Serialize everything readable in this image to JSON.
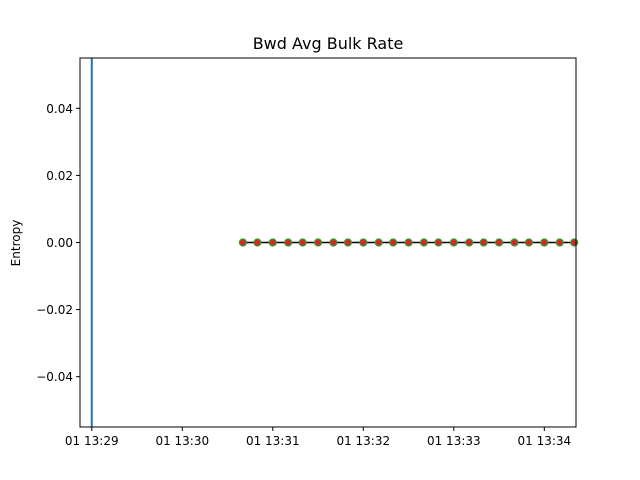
{
  "chart_data": {
    "type": "line",
    "title": "Bwd Avg Bulk Rate",
    "xlabel": "",
    "ylabel": "Entropy",
    "x_ticks": [
      "01 13:29",
      "01 13:30",
      "01 13:31",
      "01 13:32",
      "01 13:33",
      "01 13:34"
    ],
    "x_tick_minutes": [
      0,
      1,
      2,
      3,
      4,
      5
    ],
    "xlim_minutes": [
      -0.13,
      5.35
    ],
    "y_ticks": [
      "0.04",
      "0.02",
      "0.00",
      "−0.02",
      "−0.04"
    ],
    "y_tick_values": [
      0.04,
      0.02,
      0.0,
      -0.02,
      -0.04
    ],
    "ylim": [
      -0.055,
      0.055
    ],
    "vertical_line": {
      "x_minute": 0,
      "color": "#1f77b4"
    },
    "series": [
      {
        "x_minutes": [
          1.67,
          1.83,
          2.0,
          2.17,
          2.33,
          2.5,
          2.67,
          2.83,
          3.0,
          3.17,
          3.33,
          3.5,
          3.67,
          3.83,
          4.0,
          4.17,
          4.33,
          4.5,
          4.67,
          4.83,
          5.0,
          5.17,
          5.33
        ],
        "values": [
          0,
          0,
          0,
          0,
          0,
          0,
          0,
          0,
          0,
          0,
          0,
          0,
          0,
          0,
          0,
          0,
          0,
          0,
          0,
          0,
          0,
          0,
          0
        ],
        "line_color": "#000000",
        "marker_face": "#d62728",
        "marker_edge": "#2ca02c"
      }
    ],
    "grid": false
  }
}
